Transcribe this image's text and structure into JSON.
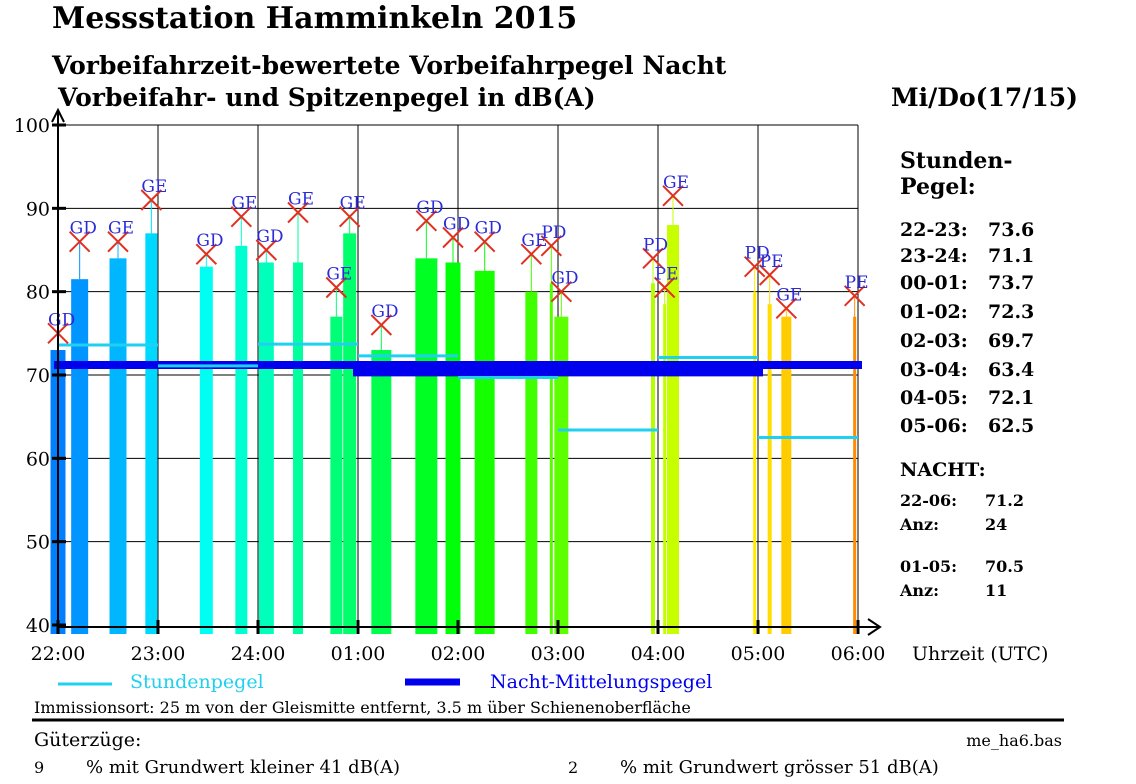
{
  "header": {
    "title": "Messstation Hamminkeln 2015",
    "subtitle1": "Vorbeifahrzeit-bewertete Vorbeifahrpegel Nacht",
    "subtitle2": "Vorbeifahr- und Spitzenpegel in dB(A)",
    "date": "Mi/Do(17/15)"
  },
  "chart_data": {
    "type": "bar",
    "title": "Messstation Hamminkeln 2015",
    "xlabel": "Uhrzeit (UTC)",
    "ylabel": "",
    "ylim": [
      40,
      100
    ],
    "yticks": [
      "100",
      "90",
      "80",
      "70",
      "60",
      "50",
      "40"
    ],
    "xticks": [
      "22:00",
      "23:00",
      "24:00",
      "01:00",
      "02:00",
      "03:00",
      "04:00",
      "05:00",
      "06:00"
    ],
    "grid": true,
    "events": [
      {
        "time": "22:00",
        "level": 73,
        "peak": 75,
        "label": "GD"
      },
      {
        "time": "22:13",
        "level": 81.5,
        "peak": 86,
        "label": "GD"
      },
      {
        "time": "22:36",
        "level": 84,
        "peak": 86,
        "label": "GE"
      },
      {
        "time": "22:56",
        "level": 87,
        "peak": 91,
        "label": "GE"
      },
      {
        "time": "23:29",
        "level": 83,
        "peak": 84.5,
        "label": "GD"
      },
      {
        "time": "23:50",
        "level": 85.5,
        "peak": 89,
        "label": "GE"
      },
      {
        "time": "00:05",
        "level": 83.5,
        "peak": 85,
        "label": "GD"
      },
      {
        "time": "00:24",
        "level": 83.5,
        "peak": 89.5,
        "label": "GE"
      },
      {
        "time": "00:47",
        "level": 77,
        "peak": 80.5,
        "label": "GE"
      },
      {
        "time": "00:55",
        "level": 87,
        "peak": 89,
        "label": "GE"
      },
      {
        "time": "01:14",
        "level": 73,
        "peak": 76,
        "label": "GD"
      },
      {
        "time": "01:41",
        "level": 84,
        "peak": 88.5,
        "label": "GD"
      },
      {
        "time": "01:57",
        "level": 83.5,
        "peak": 86.5,
        "label": "GD"
      },
      {
        "time": "02:16",
        "level": 82.5,
        "peak": 86,
        "label": "GD"
      },
      {
        "time": "02:44",
        "level": 80,
        "peak": 84.5,
        "label": "GE"
      },
      {
        "time": "02:56",
        "level": 81,
        "peak": 85.5,
        "label": "PD"
      },
      {
        "time": "03:02",
        "level": 77,
        "peak": 80,
        "label": "GD"
      },
      {
        "time": "03:57",
        "level": 81,
        "peak": 84,
        "label": "PD"
      },
      {
        "time": "04:04",
        "level": 78.5,
        "peak": 80.5,
        "label": "PE"
      },
      {
        "time": "04:09",
        "level": 88,
        "peak": 91.5,
        "label": "GE"
      },
      {
        "time": "04:58",
        "level": 80,
        "peak": 83,
        "label": "PD"
      },
      {
        "time": "05:07",
        "level": 78.5,
        "peak": 82,
        "label": "PE"
      },
      {
        "time": "05:17",
        "level": 77,
        "peak": 78,
        "label": "GE"
      },
      {
        "time": "05:58",
        "level": 77,
        "peak": 79.5,
        "label": "PE"
      }
    ],
    "series": [
      {
        "name": "Stundenpegel",
        "color": "#1fd0f0",
        "hours": [
          "22-23",
          "23-24",
          "00-01",
          "01-02",
          "02-03",
          "03-04",
          "04-05",
          "05-06"
        ],
        "values": [
          73.6,
          71.1,
          73.7,
          72.3,
          69.7,
          63.4,
          72.1,
          62.5
        ]
      },
      {
        "name": "Nacht-Mittelungspegel",
        "color": "#0000ee",
        "periods": [
          {
            "range": "22-06",
            "value": 71.2
          },
          {
            "range": "01-05",
            "value": 70.5
          }
        ]
      }
    ],
    "colors": {
      "marker": "#e03020",
      "label": "#2b2bd8",
      "start": "#0080ff",
      "end": "#ff9000"
    }
  },
  "side": {
    "heading1": "Stunden-",
    "heading2": "Pegel:",
    "rows": [
      {
        "k": "22-23:",
        "v": "73.6"
      },
      {
        "k": "23-24:",
        "v": "71.1"
      },
      {
        "k": "00-01:",
        "v": "73.7"
      },
      {
        "k": "01-02:",
        "v": "72.3"
      },
      {
        "k": "02-03:",
        "v": "69.7"
      },
      {
        "k": "03-04:",
        "v": "63.4"
      },
      {
        "k": "04-05:",
        "v": "72.1"
      },
      {
        "k": "05-06:",
        "v": "62.5"
      }
    ],
    "nacht": "NACHT:",
    "n1": {
      "k": "22-06:",
      "v": "71.2",
      "anz_k": "Anz:",
      "anz_v": "24"
    },
    "n2": {
      "k": "01-05:",
      "v": "70.5",
      "anz_k": "Anz:",
      "anz_v": "11"
    }
  },
  "legend": {
    "stunden": "Stundenpegel",
    "nacht": "Nacht-Mittelungspegel"
  },
  "footer": {
    "immission": "Immissionsort: 25 m von der Gleismitte entfernt, 3.5 m über Schienenoberfläche",
    "gueter": "Güterzüge:",
    "file": "me_ha6.bas",
    "p1n": "9",
    "p1": "% mit Grundwert kleiner 41 dB(A)",
    "p2n": "2",
    "p2": "% mit Grundwert grösser 51 dB(A)"
  }
}
